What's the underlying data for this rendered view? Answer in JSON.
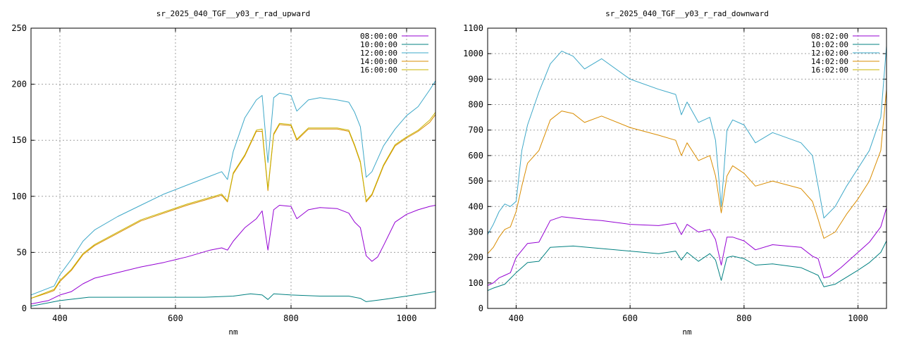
{
  "chart_data": [
    {
      "type": "line",
      "title": "sr_2025_040_TGF__y03_r_rad_upward",
      "xlabel": "nm",
      "ylabel": "",
      "xlim": [
        350,
        1050
      ],
      "ylim": [
        0,
        250
      ],
      "xticks": [
        400,
        600,
        800,
        1000
      ],
      "yticks": [
        0,
        50,
        100,
        150,
        200,
        250
      ],
      "grid": true,
      "legend_position": "top-right",
      "series": [
        {
          "name": "08:00:00",
          "color": "#9400d3",
          "x": [
            350,
            380,
            400,
            420,
            440,
            460,
            500,
            540,
            580,
            620,
            660,
            680,
            690,
            700,
            720,
            740,
            750,
            760,
            770,
            780,
            800,
            810,
            830,
            850,
            880,
            900,
            910,
            920,
            930,
            940,
            950,
            960,
            980,
            1000,
            1020,
            1040,
            1050
          ],
          "y": [
            4,
            7,
            12,
            15,
            22,
            27,
            32,
            37,
            41,
            46,
            52,
            54,
            52,
            60,
            72,
            80,
            87,
            52,
            88,
            92,
            91,
            80,
            88,
            90,
            89,
            85,
            77,
            72,
            47,
            42,
            46,
            56,
            77,
            84,
            88,
            91,
            92
          ]
        },
        {
          "name": "10:00:00",
          "color": "#008080",
          "x": [
            350,
            400,
            450,
            500,
            550,
            600,
            650,
            700,
            730,
            750,
            760,
            770,
            800,
            850,
            900,
            920,
            930,
            960,
            1000,
            1050
          ],
          "y": [
            2,
            7,
            10,
            10,
            10,
            10,
            10,
            11,
            13,
            12,
            8,
            13,
            12,
            11,
            11,
            9,
            6,
            8,
            11,
            15
          ]
        },
        {
          "name": "12:00:00",
          "color": "#3ea8c8",
          "x": [
            350,
            380,
            390,
            400,
            420,
            440,
            460,
            500,
            540,
            580,
            620,
            660,
            680,
            690,
            700,
            720,
            740,
            750,
            760,
            770,
            780,
            800,
            810,
            830,
            850,
            880,
            900,
            910,
            920,
            930,
            940,
            960,
            980,
            1000,
            1020,
            1040,
            1050
          ],
          "y": [
            12,
            18,
            20,
            30,
            44,
            60,
            70,
            82,
            92,
            102,
            110,
            118,
            122,
            115,
            140,
            170,
            186,
            190,
            130,
            188,
            192,
            190,
            176,
            186,
            188,
            186,
            184,
            175,
            162,
            117,
            122,
            145,
            160,
            172,
            180,
            195,
            203
          ]
        },
        {
          "name": "14:00:00",
          "color": "#d98c00",
          "x": [
            350,
            380,
            390,
            400,
            420,
            440,
            460,
            500,
            540,
            580,
            620,
            660,
            680,
            690,
            700,
            720,
            740,
            750,
            760,
            770,
            780,
            800,
            810,
            830,
            850,
            880,
            900,
            910,
            920,
            930,
            940,
            960,
            980,
            1000,
            1020,
            1040,
            1050
          ],
          "y": [
            9,
            14,
            16,
            24,
            34,
            48,
            56,
            67,
            78,
            85,
            92,
            98,
            101,
            95,
            120,
            136,
            158,
            158,
            105,
            155,
            164,
            163,
            150,
            160,
            160,
            160,
            158,
            145,
            130,
            95,
            101,
            127,
            145,
            152,
            158,
            166,
            173
          ]
        },
        {
          "name": "16:00:00",
          "color": "#c8b400",
          "x": [
            350,
            380,
            390,
            400,
            420,
            440,
            460,
            500,
            540,
            580,
            620,
            660,
            680,
            690,
            700,
            720,
            740,
            750,
            760,
            770,
            780,
            800,
            810,
            830,
            850,
            880,
            900,
            910,
            920,
            930,
            940,
            960,
            980,
            1000,
            1020,
            1040,
            1050
          ],
          "y": [
            9,
            15,
            17,
            25,
            35,
            49,
            57,
            68,
            79,
            86,
            93,
            99,
            102,
            96,
            121,
            137,
            159,
            160,
            107,
            156,
            165,
            164,
            151,
            161,
            161,
            161,
            159,
            146,
            131,
            96,
            102,
            128,
            146,
            153,
            159,
            168,
            175
          ]
        }
      ]
    },
    {
      "type": "line",
      "title": "sr_2025_040_TGF__y03_r_rad_downward",
      "xlabel": "nm",
      "ylabel": "",
      "xlim": [
        350,
        1050
      ],
      "ylim": [
        0,
        1100
      ],
      "xticks": [
        400,
        600,
        800,
        1000
      ],
      "yticks": [
        0,
        100,
        200,
        300,
        400,
        500,
        600,
        700,
        800,
        900,
        1000,
        1100
      ],
      "grid": true,
      "legend_position": "top-right",
      "series": [
        {
          "name": "08:02:00",
          "color": "#9400d3",
          "x": [
            350,
            360,
            370,
            380,
            390,
            400,
            420,
            440,
            460,
            480,
            500,
            520,
            550,
            600,
            650,
            680,
            690,
            700,
            720,
            740,
            750,
            760,
            770,
            780,
            800,
            820,
            850,
            900,
            920,
            930,
            940,
            950,
            970,
            1000,
            1020,
            1040,
            1050
          ],
          "y": [
            90,
            100,
            120,
            130,
            140,
            200,
            255,
            260,
            345,
            360,
            355,
            350,
            345,
            330,
            325,
            335,
            290,
            330,
            300,
            310,
            270,
            170,
            280,
            280,
            265,
            230,
            250,
            240,
            205,
            195,
            120,
            125,
            160,
            220,
            260,
            320,
            395
          ]
        },
        {
          "name": "10:02:00",
          "color": "#008080",
          "x": [
            350,
            360,
            380,
            400,
            420,
            440,
            460,
            500,
            550,
            600,
            650,
            680,
            690,
            700,
            720,
            740,
            750,
            760,
            770,
            780,
            800,
            820,
            850,
            900,
            920,
            930,
            940,
            960,
            1000,
            1020,
            1040,
            1050
          ],
          "y": [
            70,
            80,
            95,
            140,
            180,
            185,
            240,
            245,
            235,
            225,
            215,
            225,
            190,
            220,
            185,
            215,
            190,
            110,
            200,
            205,
            195,
            170,
            175,
            160,
            140,
            130,
            85,
            95,
            150,
            180,
            220,
            265
          ]
        },
        {
          "name": "12:02:00",
          "color": "#3ea8c8",
          "x": [
            350,
            360,
            370,
            380,
            390,
            400,
            410,
            420,
            440,
            460,
            480,
            500,
            520,
            550,
            600,
            650,
            680,
            690,
            700,
            720,
            740,
            750,
            760,
            770,
            780,
            800,
            820,
            850,
            900,
            920,
            930,
            940,
            960,
            980,
            1000,
            1020,
            1040,
            1050
          ],
          "y": [
            290,
            330,
            380,
            410,
            400,
            420,
            620,
            720,
            850,
            960,
            1010,
            990,
            940,
            980,
            900,
            860,
            840,
            760,
            810,
            730,
            750,
            660,
            400,
            700,
            740,
            720,
            650,
            690,
            650,
            600,
            480,
            355,
            400,
            480,
            550,
            620,
            750,
            1030
          ]
        },
        {
          "name": "14:02:00",
          "color": "#d98c00",
          "x": [
            350,
            360,
            370,
            380,
            390,
            400,
            410,
            420,
            440,
            460,
            480,
            500,
            520,
            550,
            600,
            650,
            680,
            690,
            700,
            720,
            740,
            750,
            760,
            770,
            780,
            800,
            820,
            850,
            900,
            920,
            930,
            940,
            960,
            980,
            1000,
            1020,
            1040,
            1050
          ],
          "y": [
            215,
            240,
            280,
            310,
            320,
            380,
            480,
            570,
            620,
            740,
            775,
            765,
            730,
            755,
            710,
            680,
            660,
            600,
            650,
            580,
            600,
            520,
            375,
            520,
            560,
            530,
            480,
            500,
            470,
            420,
            350,
            275,
            300,
            370,
            430,
            500,
            620,
            860
          ]
        },
        {
          "name": "16:02:00",
          "color": "#c8b400",
          "x": [
            350,
            1050
          ],
          "y": [
            null,
            null
          ]
        }
      ]
    }
  ]
}
